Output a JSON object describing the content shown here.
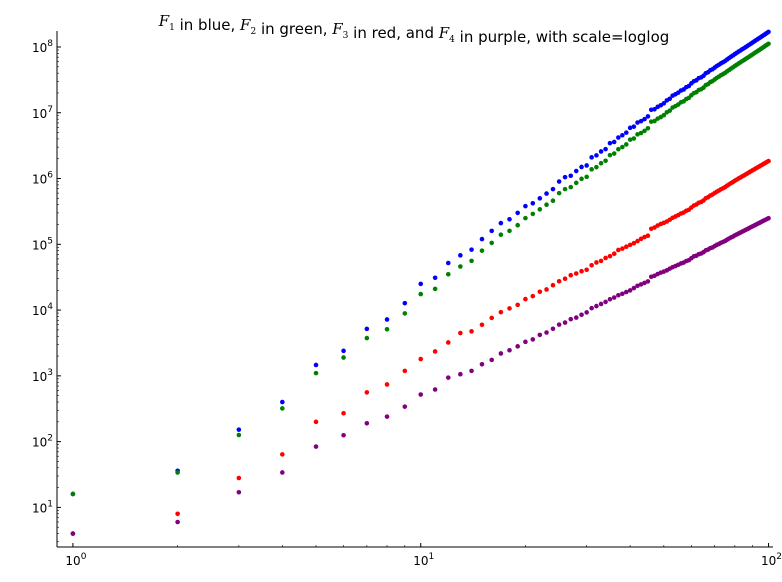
{
  "chart_data": {
    "type": "scatter",
    "title": {
      "text": "$F_1$ in blue, $F_2$ in green, $F_3$ in red, and $F_4$ in purple, with scale=loglog",
      "parts": [
        {
          "math": "F",
          "sub": "1"
        },
        {
          "text": " in blue, "
        },
        {
          "math": "F",
          "sub": "2"
        },
        {
          "text": " in green, "
        },
        {
          "math": "F",
          "sub": "3"
        },
        {
          "text": " in red, and "
        },
        {
          "math": "F",
          "sub": "4"
        },
        {
          "text": " in purple, with scale=loglog"
        }
      ]
    },
    "xlabel": "",
    "ylabel": "",
    "xscale": "log",
    "yscale": "log",
    "xlim": [
      0.9,
      103
    ],
    "ylim": [
      2.5,
      175000000
    ],
    "grid": false,
    "legend": "none",
    "x_ticks": [
      {
        "value": 1,
        "base": "10",
        "exp": "0"
      },
      {
        "value": 10,
        "base": "10",
        "exp": "1"
      },
      {
        "value": 100,
        "base": "10",
        "exp": "2"
      }
    ],
    "y_ticks": [
      {
        "value": 10,
        "base": "10",
        "exp": "1"
      },
      {
        "value": 100,
        "base": "10",
        "exp": "2"
      },
      {
        "value": 1000,
        "base": "10",
        "exp": "3"
      },
      {
        "value": 10000,
        "base": "10",
        "exp": "4"
      },
      {
        "value": 100000,
        "base": "10",
        "exp": "5"
      },
      {
        "value": 1000000,
        "base": "10",
        "exp": "6"
      },
      {
        "value": 10000000,
        "base": "10",
        "exp": "7"
      },
      {
        "value": 100000000,
        "base": "10",
        "exp": "8"
      }
    ],
    "x": [
      1,
      2,
      3,
      4,
      5,
      6,
      7,
      8,
      9,
      10,
      11,
      12,
      13,
      14,
      15,
      16,
      17,
      18,
      19,
      20,
      21,
      22,
      23,
      24,
      25,
      26,
      27,
      28,
      29,
      30,
      31,
      32,
      33,
      34,
      35,
      36,
      37,
      38,
      39,
      40,
      41,
      42,
      43,
      44,
      45,
      46,
      47,
      48,
      49,
      50,
      51,
      52,
      53,
      54,
      55,
      56,
      57,
      58,
      59,
      60,
      61,
      62,
      63,
      64,
      65,
      66,
      67,
      68,
      69,
      70,
      71,
      72,
      73,
      74,
      75,
      76,
      77,
      78,
      79,
      80,
      81,
      82,
      83,
      84,
      85,
      86,
      87,
      88,
      89,
      90,
      91,
      92,
      93,
      94,
      95,
      96,
      97,
      98,
      99,
      100
    ],
    "series": [
      {
        "color": "#0000ff",
        "values": [
          16,
          36,
          152,
          400,
          1464,
          2400,
          5180,
          7200,
          12730,
          25000,
          31000,
          52000,
          68000,
          83000,
          120000,
          160000,
          210000,
          240000,
          300000,
          380000,
          420000,
          500000,
          590000,
          690000,
          900000,
          1050000,
          1100000,
          1300000,
          1500000,
          1580000,
          2100000,
          2250000,
          2580000,
          2800000,
          3450000,
          3600000,
          4200000,
          4550000,
          4990000,
          5900000,
          6150000,
          7100000,
          7450000,
          8000000,
          8800000,
          11100000,
          11300000,
          12300000,
          13000000,
          13900000,
          15400000,
          16300000,
          18200000,
          19100000,
          20200000,
          21800000,
          22600000,
          24500000,
          25500000,
          28000000,
          30100000,
          31100000,
          33600000,
          34500000,
          36400000,
          39800000,
          41300000,
          44300000,
          45800000,
          48600000,
          51400000,
          53700000,
          56400000,
          58700000,
          61100000,
          64600000,
          67800000,
          71100000,
          74200000,
          78000000,
          81200000,
          85100000,
          88400000,
          92200000,
          95700000,
          99800000,
          103900000,
          108100000,
          112500000,
          117000000,
          121600000,
          126400000,
          131300000,
          136300000,
          141500000,
          146800000,
          152300000,
          157900000,
          163700000,
          169600000
        ]
      },
      {
        "color": "#008000",
        "values": [
          16,
          34,
          126,
          320,
          1100,
          1900,
          3750,
          5100,
          8900,
          17500,
          21000,
          35000,
          46000,
          56000,
          80000,
          105000,
          140000,
          160000,
          195000,
          250000,
          290000,
          340000,
          400000,
          460000,
          600000,
          690000,
          740000,
          860000,
          990000,
          1060000,
          1380000,
          1490000,
          1710000,
          1860000,
          2270000,
          2400000,
          2790000,
          3010000,
          3300000,
          3900000,
          4060000,
          4700000,
          4920000,
          5300000,
          5810000,
          7320000,
          7470000,
          8130000,
          8590000,
          9180000,
          10170000,
          10760000,
          12010000,
          12610000,
          13330000,
          14390000,
          14920000,
          16170000,
          16830000,
          18480000,
          19870000,
          20530000,
          22180000,
          22770000,
          24020000,
          26270000,
          27260000,
          29240000,
          30230000,
          32080000,
          33920000,
          35440000,
          37220000,
          38740000,
          40330000,
          42640000,
          44750000,
          46930000,
          48970000,
          51480000,
          53590000,
          56170000,
          58350000,
          60850000,
          63160000,
          65870000,
          68570000,
          71350000,
          74250000,
          77220000,
          80260000,
          83420000,
          86660000,
          89960000,
          93390000,
          96890000,
          100520000,
          104210000,
          108040000,
          111940000
        ]
      },
      {
        "color": "#ff0000",
        "values": [
          4,
          8,
          28,
          64,
          200,
          270,
          560,
          740,
          1190,
          1800,
          2350,
          3220,
          4480,
          4750,
          5980,
          7600,
          9300,
          10600,
          12000,
          14700,
          16300,
          19000,
          20600,
          23900,
          27400,
          30000,
          33900,
          36000,
          39000,
          41000,
          48000,
          53000,
          56000,
          62000,
          66000,
          72000,
          82000,
          86000,
          92000,
          98000,
          104000,
          112000,
          121000,
          129000,
          135000,
          172000,
          180000,
          193000,
          204000,
          212000,
          222000,
          236000,
          253000,
          265000,
          278000,
          294000,
          304000,
          323000,
          335000,
          362000,
          389000,
          403000,
          428000,
          440000,
          463000,
          501000,
          520000,
          552000,
          571000,
          602000,
          631000,
          657000,
          686000,
          712000,
          741000,
          779000,
          814000,
          851000,
          885000,
          927000,
          962000,
          1003000,
          1037000,
          1078000,
          1114000,
          1157000,
          1200000,
          1243000,
          1289000,
          1334000,
          1380000,
          1428000,
          1476000,
          1525000,
          1576000,
          1627000,
          1680000,
          1733000,
          1788000,
          1843000
        ]
      },
      {
        "color": "#800080",
        "values": [
          4,
          6,
          17,
          34,
          84,
          125,
          190,
          240,
          340,
          520,
          620,
          940,
          1060,
          1190,
          1500,
          1750,
          2190,
          2450,
          2810,
          3290,
          3580,
          4190,
          4560,
          5190,
          6010,
          6450,
          7280,
          7690,
          8490,
          9210,
          10700,
          11500,
          12400,
          13300,
          14600,
          15500,
          16800,
          17700,
          18800,
          19900,
          21600,
          23400,
          24600,
          25900,
          27300,
          32100,
          33200,
          35300,
          37100,
          38500,
          40200,
          42600,
          44900,
          46700,
          48800,
          51100,
          52700,
          55700,
          57300,
          61500,
          65600,
          67100,
          70700,
          72500,
          75800,
          80900,
          83100,
          87400,
          89500,
          93900,
          98100,
          101300,
          105400,
          108700,
          112400,
          117500,
          122300,
          127000,
          131100,
          136600,
          141100,
          146300,
          150600,
          155900,
          160500,
          165800,
          171100,
          176500,
          182100,
          187600,
          193300,
          199100,
          205000,
          211000,
          217100,
          223300,
          229600,
          236100,
          242600,
          249300
        ]
      }
    ]
  }
}
